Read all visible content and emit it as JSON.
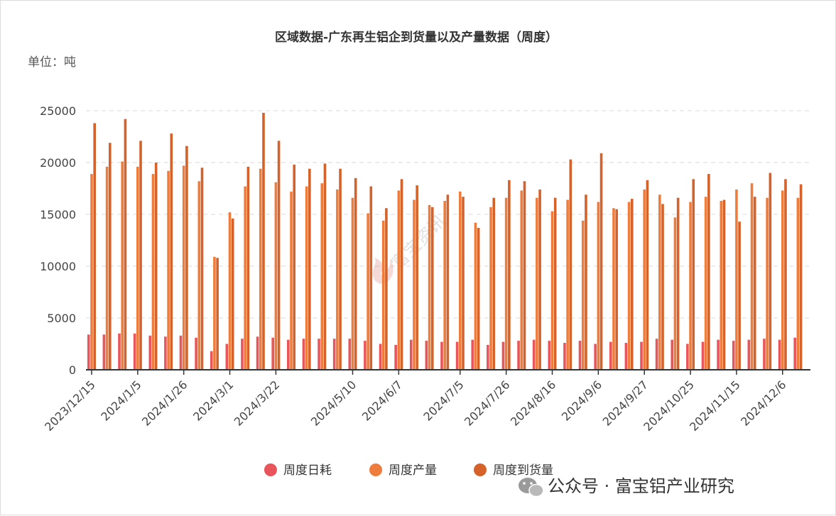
{
  "chart_data": {
    "type": "bar",
    "title": "区域数据-广东再生铝企到货量以及产量数据（周度）",
    "unit_label": "单位：吨",
    "xlabel": "",
    "ylabel": "",
    "ylim": [
      0,
      25000
    ],
    "y_ticks": [
      0,
      5000,
      10000,
      15000,
      20000,
      25000
    ],
    "grid": true,
    "legend_position": "bottom",
    "x_tick_labels": [
      "2023/12/15",
      "2024/1/5",
      "2024/1/26",
      "2024/3/1",
      "2024/3/22",
      "2024/5/10",
      "2024/6/7",
      "2024/7/5",
      "2024/7/26",
      "2024/8/16",
      "2024/9/6",
      "2024/9/27",
      "2024/10/25",
      "2024/11/15",
      "2024/12/6"
    ],
    "categories": [
      "2023/12/15",
      "2023/12/22",
      "2023/12/29",
      "2024/1/5",
      "2024/1/12",
      "2024/1/19",
      "2024/1/26",
      "2024/2/2",
      "2024/2/23",
      "2024/3/1",
      "2024/3/8",
      "2024/3/15",
      "2024/3/22",
      "2024/3/29",
      "2024/4/12",
      "2024/4/19",
      "2024/4/26",
      "2024/5/10",
      "2024/5/17",
      "2024/5/24",
      "2024/6/7",
      "2024/6/14",
      "2024/6/21",
      "2024/6/28",
      "2024/7/5",
      "2024/7/12",
      "2024/7/19",
      "2024/7/26",
      "2024/8/2",
      "2024/8/9",
      "2024/8/16",
      "2024/8/23",
      "2024/8/30",
      "2024/9/6",
      "2024/9/13",
      "2024/9/20",
      "2024/9/27",
      "2024/10/11",
      "2024/10/18",
      "2024/10/25",
      "2024/11/1",
      "2024/11/8",
      "2024/11/15",
      "2024/11/22",
      "2024/11/29",
      "2024/12/6",
      "2024/12/13"
    ],
    "series": [
      {
        "name": "周度日耗",
        "color": "#e8555a",
        "values": [
          3400,
          3400,
          3500,
          3500,
          3300,
          3200,
          3300,
          3100,
          1800,
          2500,
          3000,
          3200,
          3100,
          2900,
          3000,
          3000,
          3000,
          3000,
          2800,
          2500,
          2400,
          2900,
          2800,
          2700,
          2700,
          2900,
          2400,
          2700,
          2800,
          2900,
          2800,
          2600,
          2800,
          2500,
          2700,
          2600,
          2700,
          3000,
          2900,
          2500,
          2700,
          2900,
          2800,
          2900,
          3000,
          2900,
          3100
        ]
      },
      {
        "name": "周度产量",
        "color": "#ee7d3d",
        "values": [
          18900,
          19600,
          20100,
          19600,
          18900,
          19200,
          19700,
          18200,
          10900,
          15200,
          17700,
          19400,
          18100,
          17200,
          17700,
          18000,
          17400,
          16600,
          15100,
          14400,
          17300,
          16400,
          15900,
          16300,
          17200,
          14200,
          15700,
          16600,
          17300,
          16600,
          15300,
          16400,
          14400,
          16200,
          15600,
          16200,
          17400,
          16900,
          14700,
          16200,
          16700,
          16300,
          17400,
          18000,
          16600,
          17300,
          16600
        ]
      },
      {
        "name": "周度到货量",
        "color": "#d4622a",
        "values": [
          23800,
          21900,
          24200,
          22100,
          20000,
          22800,
          21600,
          19500,
          10800,
          14600,
          19600,
          24800,
          22100,
          19800,
          19400,
          19900,
          19400,
          18500,
          17700,
          15600,
          18400,
          17800,
          15700,
          16900,
          16700,
          13700,
          16600,
          18300,
          18200,
          17400,
          16600,
          20300,
          16900,
          20900,
          15500,
          16500,
          18300,
          16000,
          16600,
          18400,
          18900,
          16400,
          14300,
          16700,
          19000,
          18400,
          17900
        ]
      }
    ]
  },
  "watermark": "富宝资讯",
  "footer": "公众号 · 富宝铝产业研究",
  "icons": {
    "footer_logo": "wechat-icon",
    "watermark_logo": "fubao-logo-icon"
  }
}
